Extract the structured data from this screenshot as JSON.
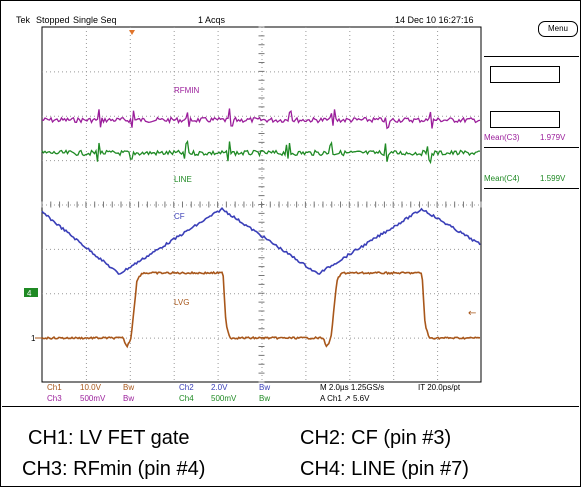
{
  "top_bar": {
    "brand": "Tek",
    "status": "Stopped",
    "mode": "Single Seq",
    "acqs": "1 Acqs",
    "datetime": "14 Dec 10 16:27:16"
  },
  "menu_button": "Menu",
  "traces": {
    "ch3": {
      "label": "RFMIN",
      "color": "#9b1e9b"
    },
    "ch4": {
      "label": "LINE",
      "color": "#1f8a24"
    },
    "ch2": {
      "label": "CF",
      "color": "#3a3fb8"
    },
    "ch1": {
      "label": "LVG",
      "color": "#a8571b"
    }
  },
  "markers": {
    "ch4_ground": "4",
    "ch1_ground": "1"
  },
  "measurements": [
    {
      "label": "Mean(C3)",
      "value": "1.979V",
      "color": "#9b1e9b"
    },
    {
      "label": "Mean(C4)",
      "value": "1.599V",
      "color": "#1f8a24"
    }
  ],
  "channel_settings": {
    "ch1": {
      "name": "Ch1",
      "scale": "10.0V",
      "bw": "Bw",
      "color": "#a8571b"
    },
    "ch3": {
      "name": "Ch3",
      "scale": "500mV",
      "bw": "Bw",
      "color": "#9b1e9b"
    },
    "ch2": {
      "name": "Ch2",
      "scale": "2.0V",
      "bw": "Bw",
      "color": "#3a3fb8"
    },
    "ch4": {
      "name": "Ch4",
      "scale": "500mV",
      "bw": "Bw",
      "color": "#1f8a24"
    }
  },
  "timebase": {
    "horizontal": "M 2.0µs 1.25GS/s",
    "record": "IT 20.0ps/pt",
    "trigger": "A  Ch1  ↗  5.6V"
  },
  "captions": {
    "ch1": "CH1: LV FET gate",
    "ch2": "CH2: CF (pin #3)",
    "ch3": "CH3: RFmin (pin #4)",
    "ch4": "CH4: LINE (pin #7)"
  }
}
